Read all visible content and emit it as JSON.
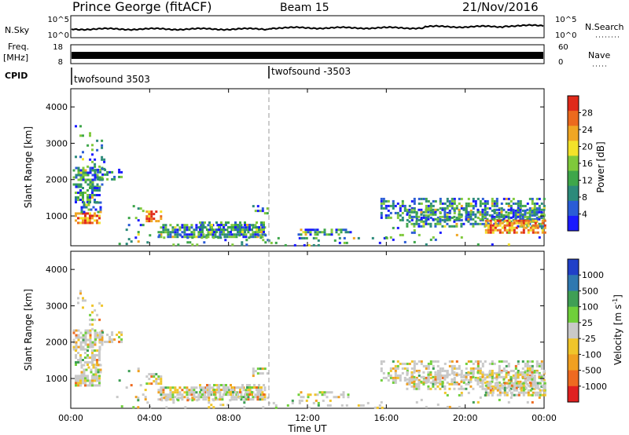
{
  "header": {
    "station": "Prince George (fitACF)",
    "beam": "Beam 15",
    "date": "21/Nov/2016"
  },
  "summary_panels": {
    "nsky_label": "N.Sky",
    "nsky_ticks": [
      "10^5",
      "10^0"
    ],
    "nsearch_label": "N.Search",
    "nsearch_ticks": [
      "10^5",
      "10^0"
    ],
    "freq_label": "Freq.",
    "freq_unit": "[MHz]",
    "freq_ticks": [
      "18",
      "8"
    ],
    "nave_label": "Nave",
    "nave_ticks": [
      "60",
      "0"
    ],
    "cpid_label": "CPID",
    "cpid_segments": [
      {
        "label": "twofsound 3503",
        "start_hour": 0
      },
      {
        "label": "twofsound -3503",
        "start_hour": 10
      }
    ]
  },
  "chart_data": [
    {
      "type": "heatmap",
      "name": "power",
      "ylabel": "Slant Range [km]",
      "xlabel": "",
      "ylim": [
        180,
        4500
      ],
      "y_ticks": [
        "4000",
        "3000",
        "2000",
        "1000"
      ],
      "colorbar": {
        "label": "Power [dB]",
        "ticks": [
          "28",
          "24",
          "20",
          "16",
          "12",
          "8",
          "4"
        ],
        "tick_values": [
          28,
          24,
          20,
          16,
          12,
          8,
          4
        ],
        "range": [
          0,
          32
        ],
        "colors": [
          "#1a1aff",
          "#2a5cd6",
          "#2c8a7a",
          "#3ea64a",
          "#7fc93b",
          "#f3e22a",
          "#f0a623",
          "#ec6a1e",
          "#e02a1a"
        ]
      }
    },
    {
      "type": "heatmap",
      "name": "velocity",
      "ylabel": "Slant Range [km]",
      "xlabel": "Time UT",
      "ylim": [
        180,
        4500
      ],
      "y_ticks": [
        "4000",
        "3000",
        "2000",
        "1000"
      ],
      "x_ticks": [
        "00:00",
        "04:00",
        "08:00",
        "12:00",
        "16:00",
        "20:00",
        "00:00"
      ],
      "x_tick_hours": [
        0,
        4,
        8,
        12,
        16,
        20,
        24
      ],
      "colorbar": {
        "label": "Velocity [m s",
        "label_sup": "-1",
        "label_end": "]",
        "ticks": [
          "1000",
          "500",
          "100",
          "25",
          "-25",
          "-100",
          "-500",
          "-1000"
        ],
        "colors": [
          "#2040c8",
          "#2f78b0",
          "#3f9f55",
          "#6fcf3a",
          "#c9c9c9",
          "#f0c52a",
          "#f0a020",
          "#ee6a20",
          "#e02020"
        ]
      }
    }
  ]
}
